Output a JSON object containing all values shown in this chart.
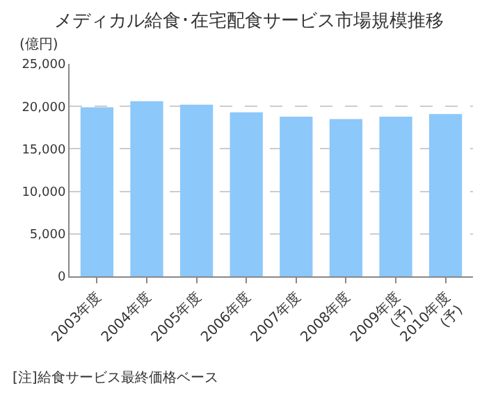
{
  "chart_data": {
    "type": "bar",
    "title": "メディカル給食･在宅配食サービス市場規模推移",
    "ylabel": "(億円)",
    "categories": [
      "2003年度",
      "2004年度",
      "2005年度",
      "2006年度",
      "2007年度",
      "2008年度",
      "2009年度\n(予)",
      "2010年度\n(予)"
    ],
    "values": [
      19900,
      20600,
      20200,
      19300,
      18800,
      18500,
      18800,
      19100
    ],
    "color": "#8cc8fa",
    "ylim": [
      0,
      25000
    ],
    "yticks": [
      {
        "value": 0,
        "label": "0"
      },
      {
        "value": 5000,
        "label": "5,000"
      },
      {
        "value": 10000,
        "label": "10,000"
      },
      {
        "value": 15000,
        "label": "15,000"
      },
      {
        "value": 20000,
        "label": "20,000"
      },
      {
        "value": 25000,
        "label": "25,000"
      }
    ],
    "grid": "y",
    "annotations": [
      "[注]給食サービス最終価格ベース"
    ]
  }
}
